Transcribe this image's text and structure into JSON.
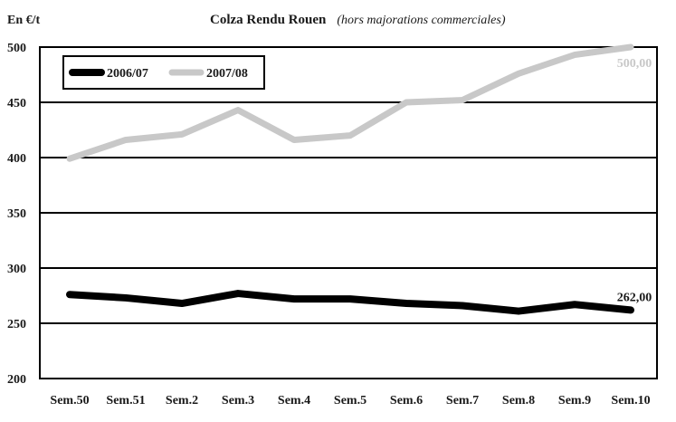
{
  "chart_data": {
    "type": "line",
    "title": "Colza Rendu Rouen",
    "subtitle": "(hors majorations commerciales)",
    "ylabel": "En €/t",
    "xlabel": "",
    "ylim": [
      200,
      500
    ],
    "yticks": [
      200,
      250,
      300,
      350,
      400,
      450,
      500
    ],
    "grid": true,
    "legend_position": "top-left",
    "categories": [
      "Sem.50",
      "Sem.51",
      "Sem.2",
      "Sem.3",
      "Sem.4",
      "Sem.5",
      "Sem.6",
      "Sem.7",
      "Sem.8",
      "Sem.9",
      "Sem.10"
    ],
    "series": [
      {
        "name": "2006/07",
        "color": "#000000",
        "values": [
          276,
          273,
          268,
          277,
          272,
          272,
          268,
          266,
          261,
          267,
          262
        ],
        "end_label": "262,00"
      },
      {
        "name": "2007/08",
        "color": "#c8c8c8",
        "values": [
          399,
          416,
          421,
          443,
          416,
          420,
          450,
          452,
          476,
          493,
          500
        ],
        "end_label": "500,00"
      }
    ]
  }
}
